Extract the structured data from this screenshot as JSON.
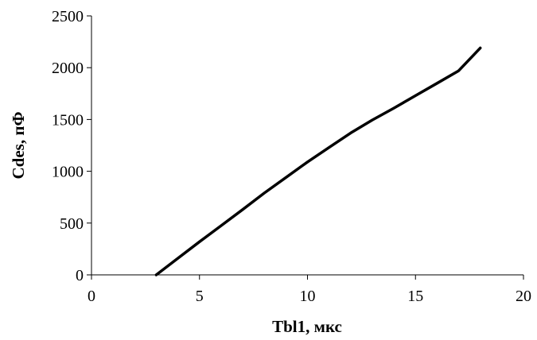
{
  "chart_data": {
    "type": "line",
    "title": "",
    "xlabel": "Tbl1, мкс",
    "ylabel": "Cdes, пФ",
    "xlim": [
      0,
      20
    ],
    "ylim": [
      0,
      2500
    ],
    "xticks": [
      "0",
      "5",
      "10",
      "15",
      "20"
    ],
    "yticks": [
      "0",
      "500",
      "1000",
      "1500",
      "2000",
      "2500"
    ],
    "grid": false,
    "legend": "none",
    "series": [
      {
        "color": "#000000",
        "x": [
          3,
          4,
          5,
          6,
          7,
          8,
          9,
          10,
          11,
          12,
          13,
          14,
          15,
          16,
          17,
          18
        ],
        "y": [
          0,
          160,
          320,
          475,
          630,
          790,
          940,
          1090,
          1230,
          1370,
          1495,
          1610,
          1730,
          1850,
          1970,
          2190
        ]
      }
    ]
  }
}
